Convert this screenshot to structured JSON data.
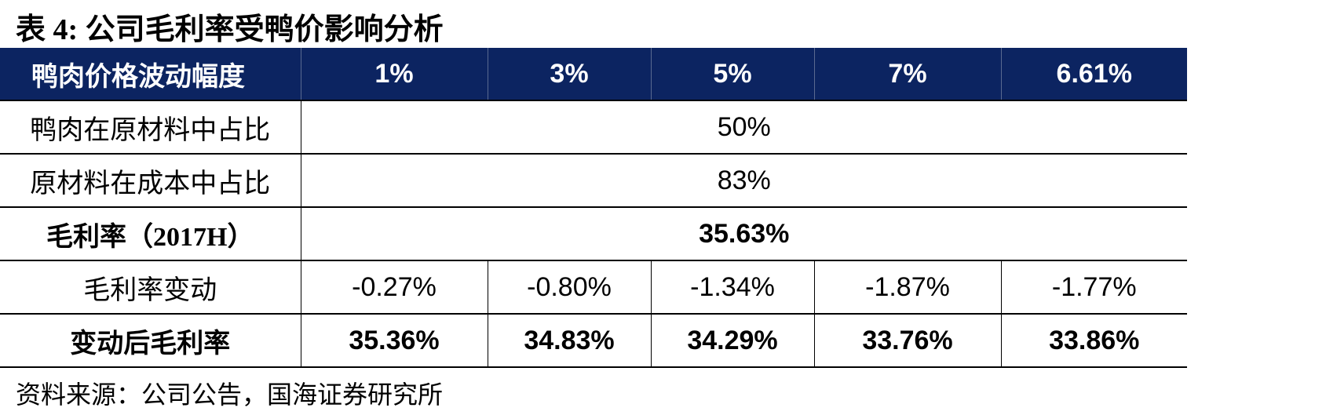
{
  "title": "表 4:  公司毛利率受鸭价影响分析",
  "table": {
    "header": [
      "鸭肉价格波动幅度",
      "1%",
      "3%",
      "5%",
      "7%",
      "6.61%"
    ],
    "rows": [
      [
        "鸭肉在原材料中占比",
        "50%"
      ],
      [
        "原材料在成本中占比",
        "83%"
      ],
      [
        "毛利率（2017H）",
        "35.63%"
      ],
      [
        "毛利率变动",
        "-0.27%",
        "-0.80%",
        "-1.34%",
        "-1.87%",
        "-1.77%"
      ],
      [
        "变动后毛利率",
        "35.36%",
        "34.83%",
        "34.29%",
        "33.76%",
        "33.86%"
      ]
    ]
  },
  "source": "资料来源：公司公告，国海证券研究所"
}
